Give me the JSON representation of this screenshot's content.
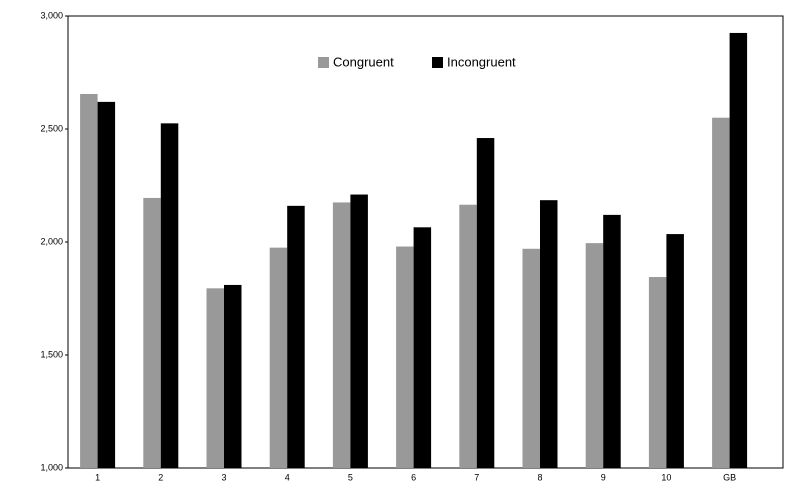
{
  "chart_data": {
    "type": "bar",
    "categories": [
      "1",
      "2",
      "3",
      "4",
      "5",
      "6",
      "7",
      "8",
      "9",
      "10",
      "GB"
    ],
    "series": [
      {
        "name": "Congruent",
        "color": "#999999",
        "values": [
          2655,
          2195,
          1795,
          1975,
          2175,
          1980,
          2165,
          1970,
          1995,
          1845,
          2550
        ]
      },
      {
        "name": "Incongruent",
        "color": "#000000",
        "values": [
          2620,
          2525,
          1810,
          2160,
          2210,
          2065,
          2460,
          2185,
          2120,
          2035,
          2925
        ]
      }
    ],
    "ylim": [
      1000,
      3000
    ],
    "yticks": [
      {
        "value": 1000,
        "label": "1,000"
      },
      {
        "value": 1500,
        "label": "1,500"
      },
      {
        "value": 2000,
        "label": "2,000"
      },
      {
        "value": 2500,
        "label": "2,500"
      },
      {
        "value": 3000,
        "label": "3,000"
      }
    ],
    "grid": false,
    "legend": "top"
  }
}
